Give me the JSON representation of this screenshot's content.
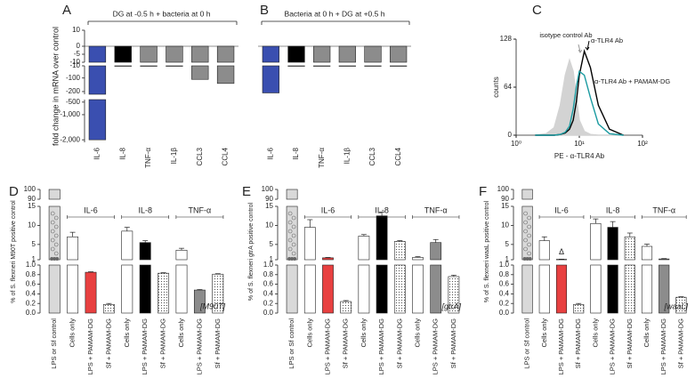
{
  "chart_data": [
    {
      "panel": "A",
      "type": "broken_bar",
      "header": "DG at -0.5 h + bacteria at 0 h",
      "ylabel": "fold change in mRNA over control",
      "categories": [
        "IL-6",
        "IL-8",
        "TNF-α",
        "IL-1β",
        "CCL3",
        "CCL4"
      ],
      "values": [
        -2000,
        -13,
        -12,
        -12,
        -110,
        -140
      ],
      "colors": [
        "#3a4fb0",
        "#000000",
        "#8c8c8c",
        "#8c8c8c",
        "#8c8c8c",
        "#8c8c8c"
      ],
      "ysegments": [
        {
          "range": [
            -10,
            10
          ],
          "ticks": [
            10,
            0,
            -5,
            -10
          ]
        },
        {
          "range": [
            -220,
            -10
          ],
          "ticks": [
            -10,
            -100,
            -200
          ]
        },
        {
          "range": [
            -2100,
            -400
          ],
          "ticks": [
            -500,
            {
              "value": -1000,
              "label": "-1,000"
            },
            {
              "value": -2000,
              "label": "-2,000"
            }
          ]
        }
      ]
    },
    {
      "panel": "B",
      "type": "broken_bar",
      "header": "Bacteria at 0 h + DG at +0.5 h",
      "categories": [
        "IL-6",
        "IL-8",
        "TNF-α",
        "IL-1β",
        "CCL3",
        "CCL4"
      ],
      "values": [
        -210,
        -13,
        -11,
        -11,
        -12,
        -12
      ],
      "colors": [
        "#3a4fb0",
        "#000000",
        "#8c8c8c",
        "#8c8c8c",
        "#8c8c8c",
        "#8c8c8c"
      ],
      "ysegments": [
        {
          "range": [
            -10,
            10
          ]
        },
        {
          "range": [
            -220,
            -10
          ]
        },
        {
          "range": [
            -2100,
            -400
          ]
        }
      ]
    },
    {
      "panel": "C",
      "type": "histogram_line",
      "xlabel": "PE - α-TLR4 Ab",
      "ylabel": "counts",
      "xscale": "log",
      "xlim": [
        1,
        100
      ],
      "xticks": [
        {
          "value": 1,
          "label": "10⁰"
        },
        {
          "value": 10,
          "label": "10¹"
        },
        {
          "value": 100,
          "label": "10²"
        }
      ],
      "ylim": [
        0,
        128
      ],
      "yticks": [
        0,
        64,
        128
      ],
      "x": [
        2,
        3,
        4,
        5,
        6,
        7,
        8,
        9,
        10,
        12,
        15,
        20,
        30,
        50
      ],
      "series": [
        {
          "name": "isotype control Ab",
          "color": "#d3d3d3",
          "fill": true,
          "values": [
            0,
            2,
            10,
            40,
            80,
            100,
            85,
            50,
            20,
            5,
            1,
            0,
            0,
            0
          ]
        },
        {
          "name": "α-TLR4 Ab",
          "color": "#000000",
          "fill": false,
          "values": [
            0,
            0,
            0,
            1,
            3,
            8,
            20,
            45,
            80,
            112,
            90,
            40,
            8,
            0
          ]
        },
        {
          "name": "α-TLR4 Ab + PAMAM-DG",
          "color": "#1a9aa0",
          "fill": false,
          "values": [
            0,
            0,
            0,
            1,
            4,
            12,
            35,
            65,
            85,
            80,
            50,
            15,
            2,
            0
          ]
        }
      ]
    },
    {
      "panel": "D",
      "type": "broken_bar_err",
      "ylabel": "% of S. flexneri M90T positive control",
      "strain": "[M90T]",
      "groups": [
        "IL-6",
        "IL-8",
        "TNF-α"
      ],
      "categories": [
        "LPS or Sf control",
        "Cells only",
        "LPS + PAMAM-DG",
        "Sf + PAMAM-DG",
        "Cells only",
        "LPS + PAMAM-DG",
        "Sf + PAMAM-DG",
        "Cells only",
        "LPS + PAMAM-DG",
        "Sf + PAMAM-DG"
      ],
      "values": [
        100,
        7,
        0.85,
        0.18,
        8.5,
        5.5,
        0.83,
        3.5,
        0.48,
        0.81
      ],
      "errors": [
        0,
        1.2,
        0.01,
        0.02,
        1,
        0.5,
        0.01,
        0.5,
        0.01,
        0.01
      ],
      "colors": [
        "#d9d9d9",
        "#ffffff",
        "#e84040",
        "#ffffff",
        "#ffffff",
        "#000000",
        "#ffffff",
        "#ffffff",
        "#8c8c8c",
        "#ffffff"
      ],
      "dotted": [
        false,
        false,
        false,
        true,
        false,
        false,
        true,
        false,
        false,
        true
      ],
      "ysegments": [
        {
          "range": [
            90,
            100
          ],
          "ticks": [
            100,
            90
          ]
        },
        {
          "range": [
            1,
            15
          ],
          "ticks": [
            15,
            10,
            5,
            1
          ]
        },
        {
          "range": [
            0,
            1
          ],
          "ticks": [
            {
              "value": 1,
              "label": "1.0"
            },
            0.8,
            0.6,
            0.4,
            0.2,
            {
              "value": 0,
              "label": "0.0"
            }
          ]
        }
      ]
    },
    {
      "panel": "E",
      "type": "broken_bar_err",
      "ylabel": "% of S. flexneri gtrA positive control",
      "strain": "[gtrA]",
      "groups": [
        "IL-6",
        "IL-8",
        "TNF-α"
      ],
      "categories": [
        "LPS or Sf control",
        "Cells only",
        "LPS + PAMAM-DG",
        "Sf + PAMAM-DG",
        "Cells only",
        "LPS + PAMAM-DG",
        "Sf + PAMAM-DG",
        "Cells only",
        "LPS + PAMAM-DG",
        "Sf + PAMAM-DG"
      ],
      "values": [
        100,
        9.5,
        1.5,
        0.24,
        7.2,
        12.5,
        5.8,
        1.6,
        5.5,
        0.76
      ],
      "errors": [
        0,
        2,
        0.1,
        0.02,
        0.4,
        1,
        0.2,
        0.2,
        0.8,
        0.03
      ],
      "colors": [
        "#d9d9d9",
        "#ffffff",
        "#e84040",
        "#ffffff",
        "#ffffff",
        "#000000",
        "#ffffff",
        "#ffffff",
        "#8c8c8c",
        "#ffffff"
      ],
      "dotted": [
        false,
        false,
        false,
        true,
        false,
        false,
        true,
        false,
        false,
        true
      ],
      "ysegments": [
        {
          "range": [
            90,
            100
          ],
          "ticks": [
            100,
            90
          ]
        },
        {
          "range": [
            1,
            15
          ],
          "ticks": [
            15,
            10,
            5,
            1
          ]
        },
        {
          "range": [
            0,
            1
          ],
          "ticks": [
            {
              "value": 1,
              "label": "1.0"
            },
            0.8,
            0.6,
            0.4,
            0.2,
            {
              "value": 0,
              "label": "0.0"
            }
          ]
        }
      ]
    },
    {
      "panel": "F",
      "type": "broken_bar_err",
      "ylabel": "% of S. flexneri waaL positive control",
      "strain": "[waaL]",
      "annotation": "Δ",
      "groups": [
        "IL-6",
        "IL-8",
        "TNF-α"
      ],
      "categories": [
        "LPS or Sf control",
        "Cells only",
        "LPS + PAMAM-DG",
        "Sf + PAMAM-DG",
        "Cells only",
        "LPS + PAMAM-DG",
        "Sf + PAMAM-DG",
        "Cells only",
        "LPS + PAMAM-DG",
        "Sf + PAMAM-DG"
      ],
      "values": [
        100,
        6,
        1.1,
        0.18,
        10.5,
        9.5,
        7,
        4.5,
        1.2,
        0.33
      ],
      "errors": [
        0,
        1,
        0.05,
        0.02,
        1.2,
        1.5,
        1,
        0.6,
        0.1,
        0.01
      ],
      "colors": [
        "#d9d9d9",
        "#ffffff",
        "#e84040",
        "#ffffff",
        "#ffffff",
        "#000000",
        "#ffffff",
        "#ffffff",
        "#8c8c8c",
        "#ffffff"
      ],
      "dotted": [
        false,
        false,
        false,
        true,
        false,
        false,
        true,
        false,
        false,
        true
      ],
      "ysegments": [
        {
          "range": [
            90,
            100
          ],
          "ticks": [
            100,
            90
          ]
        },
        {
          "range": [
            1,
            15
          ],
          "ticks": [
            15,
            10,
            5,
            1
          ]
        },
        {
          "range": [
            0,
            1
          ],
          "ticks": [
            {
              "value": 1,
              "label": "1.0"
            },
            0.8,
            0.6,
            0.4,
            0.2,
            {
              "value": 0,
              "label": "0.0"
            }
          ]
        }
      ]
    }
  ]
}
